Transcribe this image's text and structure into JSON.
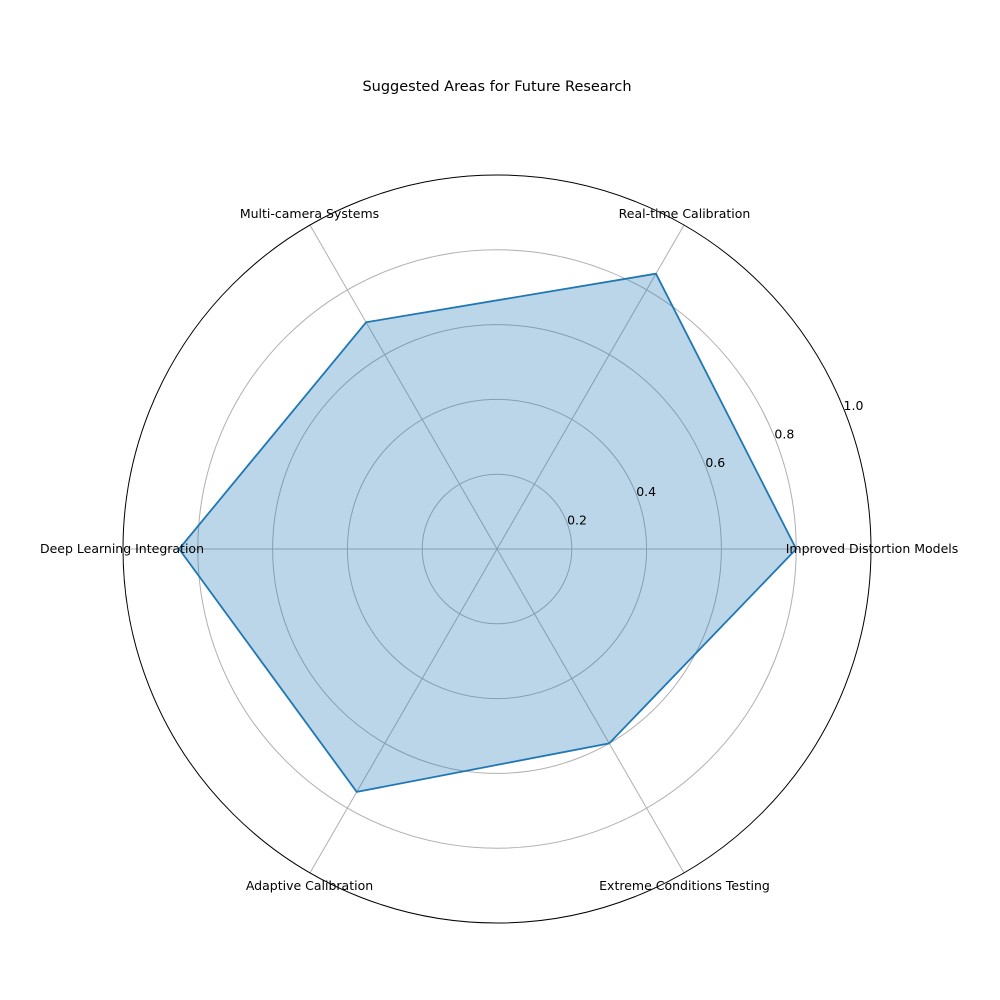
{
  "chart_data": {
    "type": "radar",
    "title": "Suggested Areas for Future Research",
    "categories": [
      "Improved Distortion Models",
      "Real-time Calibration",
      "Multi-camera Systems",
      "Deep Learning Integration",
      "Adaptive Calibration",
      "Extreme Conditions Testing"
    ],
    "values": [
      0.8,
      0.85,
      0.7,
      0.85,
      0.75,
      0.6
    ],
    "rlim": [
      0,
      1.0
    ],
    "r_ticks": [
      "0.2",
      "0.4",
      "0.6",
      "0.8",
      "1.0"
    ],
    "grid": true,
    "colors": {
      "line": "#1f77b4",
      "fill": "#1f77b4",
      "grid": "#b0b0b0",
      "outer": "#000000"
    }
  }
}
